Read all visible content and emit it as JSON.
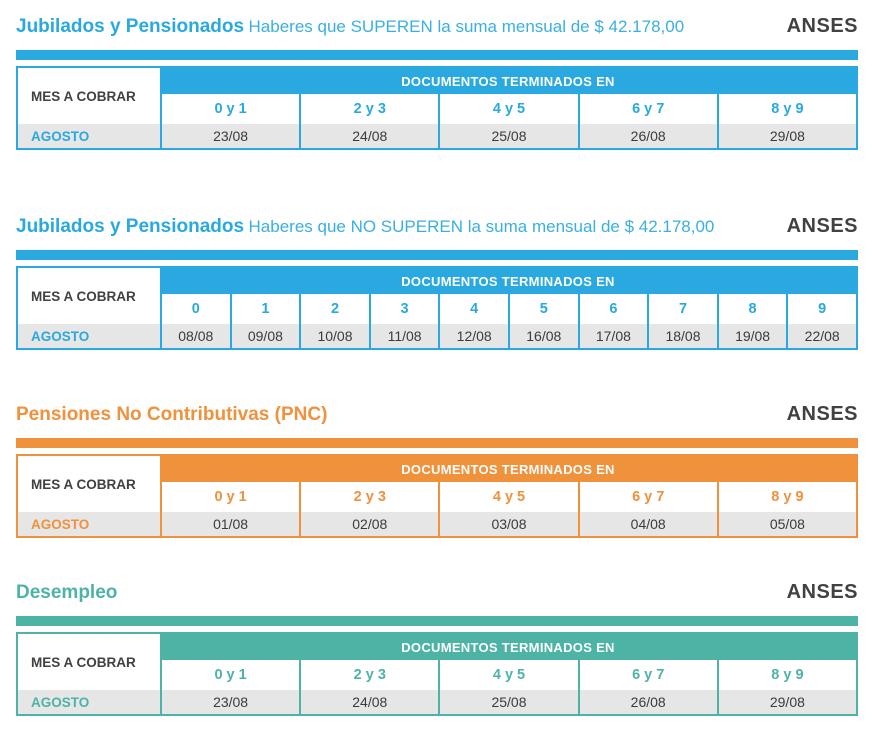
{
  "colors": {
    "blue": "#29A9E0",
    "orange": "#F0913C",
    "teal": "#4DB3A5",
    "row_background_gray": "#E6E6E6",
    "dark_text": "#414042"
  },
  "table_common": {
    "row_header": "MES A COBRAR",
    "group_header": "DOCUMENTOS TERMINADOS EN",
    "month": "AGOSTO"
  },
  "sections": [
    {
      "title": "Jubilados y Pensionados",
      "subtitle": "Haberes que SUPEREN la suma mensual de $ 42.178,00",
      "brand": "ANSES",
      "accent": "#29A9E0",
      "columns": [
        "0 y 1",
        "2 y 3",
        "4 y 5",
        "6 y 7",
        "8 y 9"
      ],
      "dates": [
        "23/08",
        "24/08",
        "25/08",
        "26/08",
        "29/08"
      ]
    },
    {
      "title": "Jubilados y Pensionados",
      "subtitle": "Haberes que NO SUPEREN la suma mensual de $ 42.178,00",
      "brand": "ANSES",
      "accent": "#29A9E0",
      "columns": [
        "0",
        "1",
        "2",
        "3",
        "4",
        "5",
        "6",
        "7",
        "8",
        "9"
      ],
      "dates": [
        "08/08",
        "09/08",
        "10/08",
        "11/08",
        "12/08",
        "16/08",
        "17/08",
        "18/08",
        "19/08",
        "22/08"
      ]
    },
    {
      "title": "Pensiones No Contributivas (PNC)",
      "subtitle": "",
      "brand": "ANSES",
      "accent": "#F0913C",
      "columns": [
        "0 y 1",
        "2 y 3",
        "4 y 5",
        "6 y 7",
        "8 y 9"
      ],
      "dates": [
        "01/08",
        "02/08",
        "03/08",
        "04/08",
        "05/08"
      ]
    },
    {
      "title": "Desempleo",
      "subtitle": "",
      "brand": "ANSES",
      "accent": "#4DB3A5",
      "columns": [
        "0 y 1",
        "2 y 3",
        "4 y 5",
        "6 y 7",
        "8 y 9"
      ],
      "dates": [
        "23/08",
        "24/08",
        "25/08",
        "26/08",
        "29/08"
      ]
    }
  ]
}
